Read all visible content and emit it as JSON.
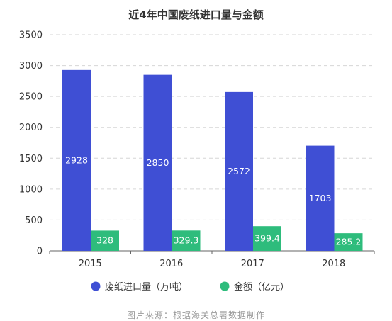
{
  "chart_data": {
    "type": "bar",
    "title": "近4年中国废纸进口量与金额",
    "categories": [
      "2015",
      "2016",
      "2017",
      "2018"
    ],
    "series": [
      {
        "name": "废纸进口量（万吨）",
        "values": [
          2928,
          2850,
          2572,
          1703
        ],
        "color": "#3f4fd4",
        "labels": [
          "2928",
          "2850",
          "2572",
          "1703"
        ]
      },
      {
        "name": "金额（亿元）",
        "values": [
          328,
          329.3,
          399.4,
          285.2
        ],
        "color": "#2ebc7c",
        "labels": [
          "328",
          "329.3",
          "399.4",
          "285.2"
        ]
      }
    ],
    "ylim": [
      0,
      3500
    ],
    "yticks": [
      0,
      500,
      1000,
      1500,
      2000,
      2500,
      3000,
      3500
    ],
    "grid": true,
    "legend_position": "bottom"
  },
  "legend": {
    "items": [
      {
        "label": "废纸进口量（万吨）"
      },
      {
        "label": "金额（亿元）"
      }
    ]
  },
  "source_text": "图片来源：根据海关总署数据制作"
}
